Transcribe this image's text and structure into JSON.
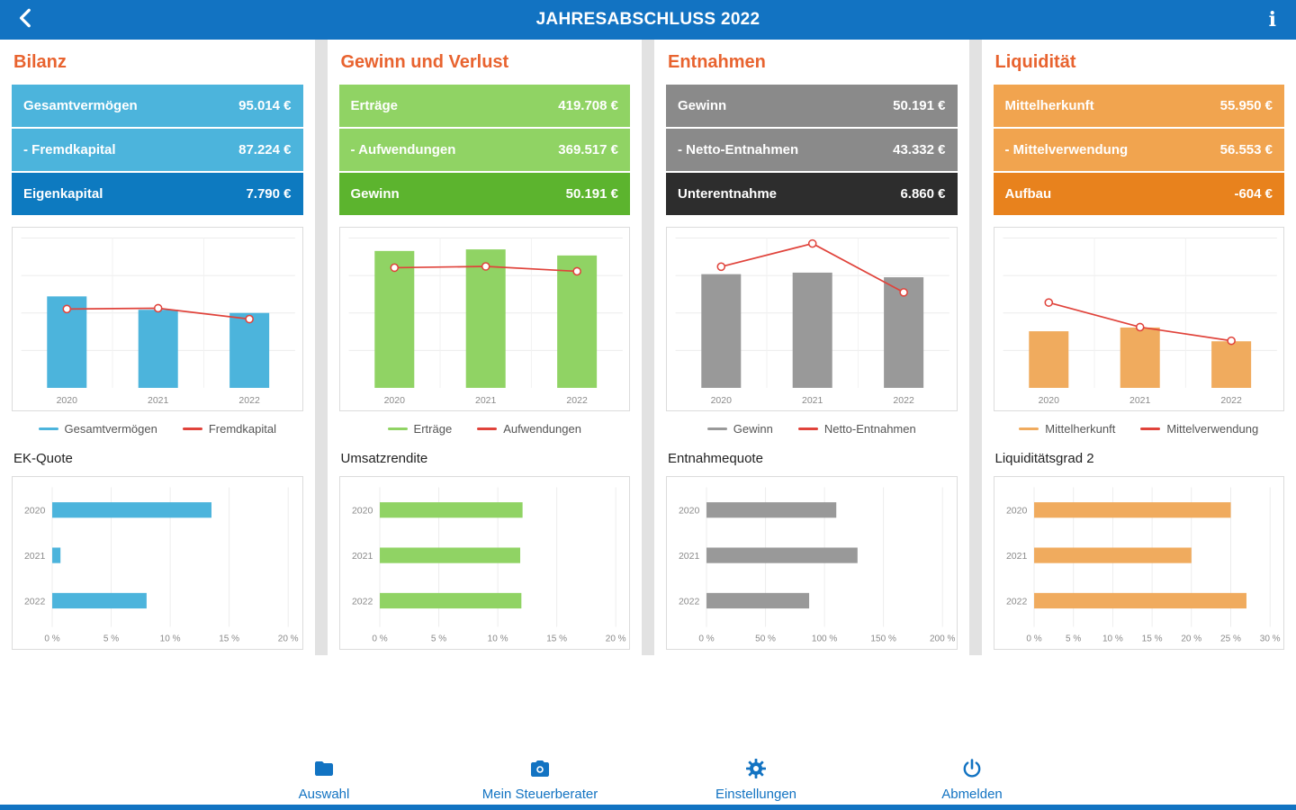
{
  "header": {
    "title": "JAHRESABSCHLUSS 2022"
  },
  "columns": [
    {
      "title": "Bilanz",
      "colors": {
        "light": "#4cb4dc",
        "dark": "#0d7ac0"
      },
      "summary": [
        {
          "label": "Gesamtvermögen",
          "value": "95.014 €"
        },
        {
          "label": "- Fremdkapital",
          "value": "87.224 €"
        },
        {
          "label": "Eigenkapital",
          "value": "7.790 €"
        }
      ],
      "chart_data": {
        "combo": {
          "type": "bar+line",
          "categories": [
            "2020",
            "2021",
            "2022"
          ],
          "ylim": [
            0,
            190000
          ],
          "unit": "€",
          "bar_series": {
            "name": "Gesamtvermögen",
            "color": "#4cb4dc",
            "values": [
              116000,
              99000,
              95014
            ]
          },
          "line_series": {
            "name": "Fremdkapital",
            "color": "#e0433b",
            "values": [
              100000,
              101000,
              87224
            ]
          }
        },
        "quote": {
          "type": "bar",
          "orientation": "horizontal",
          "title": "EK-Quote",
          "categories": [
            "2020",
            "2021",
            "2022"
          ],
          "values": [
            13.5,
            0.7,
            8
          ],
          "unit": "%",
          "color": "#4cb4dc",
          "xlim": [
            0,
            20
          ],
          "xticks": [
            0,
            5,
            10,
            15,
            20
          ]
        }
      }
    },
    {
      "title": "Gewinn und Verlust",
      "colors": {
        "light": "#90d364",
        "dark": "#5cb42e"
      },
      "summary": [
        {
          "label": "Erträge",
          "value": "419.708 €"
        },
        {
          "label": "- Aufwendungen",
          "value": "369.517 €"
        },
        {
          "label": "Gewinn",
          "value": "50.191 €"
        }
      ],
      "chart_data": {
        "combo": {
          "type": "bar+line",
          "categories": [
            "2020",
            "2021",
            "2022"
          ],
          "ylim": [
            0,
            475000
          ],
          "unit": "€",
          "bar_series": {
            "name": "Erträge",
            "color": "#90d364",
            "values": [
              434000,
              439000,
              419708
            ]
          },
          "line_series": {
            "name": "Aufwendungen",
            "color": "#e0433b",
            "values": [
              381000,
              385000,
              369517
            ]
          }
        },
        "quote": {
          "type": "bar",
          "orientation": "horizontal",
          "title": "Umsatzrendite",
          "categories": [
            "2020",
            "2021",
            "2022"
          ],
          "values": [
            12.1,
            11.9,
            12.0
          ],
          "unit": "%",
          "color": "#90d364",
          "xlim": [
            0,
            20
          ],
          "xticks": [
            0,
            5,
            10,
            15,
            20
          ]
        }
      }
    },
    {
      "title": "Entnahmen",
      "colors": {
        "light": "#8a8a8a",
        "dark": "#2d2d2d"
      },
      "summary": [
        {
          "label": "Gewinn",
          "value": "50.191 €"
        },
        {
          "label": "- Netto-Entnahmen",
          "value": "43.332 €"
        },
        {
          "label": "Unterentnahme",
          "value": "6.860 €"
        }
      ],
      "chart_data": {
        "combo": {
          "type": "bar+line",
          "categories": [
            "2020",
            "2021",
            "2022"
          ],
          "ylim": [
            0,
            68000
          ],
          "unit": "€",
          "bar_series": {
            "name": "Gewinn",
            "color": "#999999",
            "values": [
              51600,
              52300,
              50191
            ]
          },
          "line_series": {
            "name": "Netto-Entnahmen",
            "color": "#e0433b",
            "values": [
              55000,
              65500,
              43332
            ]
          }
        },
        "quote": {
          "type": "bar",
          "orientation": "horizontal",
          "title": "Entnahmequote",
          "categories": [
            "2020",
            "2021",
            "2022"
          ],
          "values": [
            110,
            128,
            87
          ],
          "unit": "%",
          "color": "#999999",
          "xlim": [
            0,
            200
          ],
          "xticks": [
            0,
            50,
            100,
            150,
            200
          ]
        }
      }
    },
    {
      "title": "Liquidität",
      "colors": {
        "light": "#f1a44f",
        "dark": "#e8821d"
      },
      "summary": [
        {
          "label": "Mittelherkunft",
          "value": "55.950 €"
        },
        {
          "label": "- Mittelverwendung",
          "value": "56.553 €"
        },
        {
          "label": "Aufbau",
          "value": "-604 €"
        }
      ],
      "chart_data": {
        "combo": {
          "type": "bar+line",
          "categories": [
            "2020",
            "2021",
            "2022"
          ],
          "ylim": [
            0,
            180000
          ],
          "unit": "€",
          "bar_series": {
            "name": "Mittelherkunft",
            "color": "#f0ab5e",
            "values": [
              68000,
              72500,
              55950
            ]
          },
          "line_series": {
            "name": "Mittelverwendung",
            "color": "#e0433b",
            "values": [
              102500,
              73000,
              56553
            ]
          }
        },
        "quote": {
          "type": "bar",
          "orientation": "horizontal",
          "title": "Liquiditätsgrad 2",
          "categories": [
            "2020",
            "2021",
            "2022"
          ],
          "values": [
            25,
            20,
            27
          ],
          "unit": "%",
          "color": "#f0ab5e",
          "xlim": [
            0,
            30
          ],
          "xticks": [
            0,
            5,
            10,
            15,
            20,
            25,
            30
          ]
        }
      }
    }
  ],
  "nav": {
    "items": [
      {
        "label": "Auswahl",
        "icon": "folder-icon"
      },
      {
        "label": "Mein Steuerberater",
        "icon": "camera-icon"
      },
      {
        "label": "Einstellungen",
        "icon": "gear-icon"
      },
      {
        "label": "Abmelden",
        "icon": "power-icon"
      }
    ]
  },
  "accent_colors": {
    "header_blue": "#1273c2",
    "heading_orange": "#e8632f",
    "line_red": "#e0433b"
  }
}
